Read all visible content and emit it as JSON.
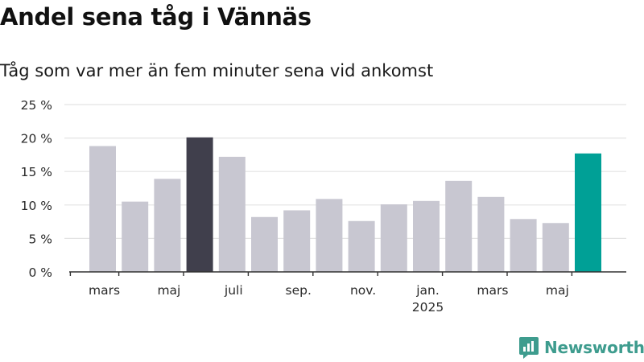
{
  "header": {
    "title": "Andel sena tåg i Vännäs",
    "subtitle": "Tåg som var mer än fem minuter sena vid ankomst"
  },
  "brand": {
    "name": "Newsworthy",
    "icon": "newsworthy-logo-icon",
    "color": "#3e9c8e"
  },
  "colors": {
    "default": "#c8c7d1",
    "highlight_dark": "#403f4c",
    "highlight_latest": "#00a096",
    "grid": "#e3e3e3",
    "axis": "#333333"
  },
  "chart_data": {
    "type": "bar",
    "title": "Andel sena tåg i Vännäs",
    "subtitle": "Tåg som var mer än fem minuter sena vid ankomst",
    "xlabel": "",
    "ylabel": "",
    "ylim": [
      0,
      25
    ],
    "y_ticks": [
      "0 %",
      "5 %",
      "10 %",
      "15 %",
      "20 %",
      "25 %"
    ],
    "grid": true,
    "x_tick_labels": [
      {
        "after_bar": 1,
        "label": "mars",
        "sub": ""
      },
      {
        "after_bar": 3,
        "label": "maj",
        "sub": ""
      },
      {
        "after_bar": 5,
        "label": "juli",
        "sub": ""
      },
      {
        "after_bar": 7,
        "label": "sep.",
        "sub": ""
      },
      {
        "after_bar": 9,
        "label": "nov.",
        "sub": ""
      },
      {
        "after_bar": 11,
        "label": "jan.",
        "sub": "2025"
      },
      {
        "after_bar": 13,
        "label": "mars",
        "sub": ""
      },
      {
        "after_bar": 15,
        "label": "maj",
        "sub": ""
      }
    ],
    "values": [
      18.8,
      10.5,
      13.9,
      20.1,
      17.2,
      8.2,
      9.2,
      10.9,
      7.6,
      10.1,
      10.6,
      13.6,
      11.2,
      7.9,
      7.3,
      17.7
    ],
    "highlight": {
      "3": "dark",
      "15": "latest"
    }
  }
}
